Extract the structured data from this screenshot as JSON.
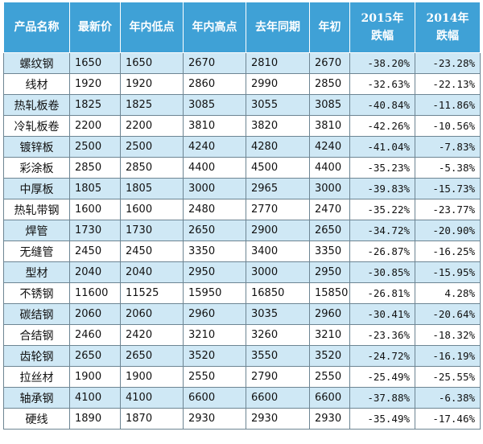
{
  "table": {
    "headers": [
      "产品名称",
      "最新价",
      "年内低点",
      "年内高点",
      "去年同期",
      "年初",
      "2015年\n跌幅",
      "2014年\n跌幅"
    ],
    "rows": [
      [
        "螺纹钢",
        "1650",
        "1650",
        "2670",
        "2810",
        "2670",
        "-38.20%",
        "-23.28%"
      ],
      [
        "线材",
        "1920",
        "1920",
        "2860",
        "2990",
        "2850",
        "-32.63%",
        "-22.13%"
      ],
      [
        "热轧板卷",
        "1825",
        "1825",
        "3085",
        "3055",
        "3085",
        "-40.84%",
        "-11.86%"
      ],
      [
        "冷轧板卷",
        "2200",
        "2200",
        "3810",
        "3820",
        "3810",
        "-42.26%",
        "-10.56%"
      ],
      [
        "镀锌板",
        "2500",
        "2500",
        "4240",
        "4280",
        "4240",
        "-41.04%",
        "-7.83%"
      ],
      [
        "彩涂板",
        "2850",
        "2850",
        "4400",
        "4500",
        "4400",
        "-35.23%",
        "-5.38%"
      ],
      [
        "中厚板",
        "1805",
        "1805",
        "3000",
        "2965",
        "3000",
        "-39.83%",
        "-15.73%"
      ],
      [
        "热轧带钢",
        "1600",
        "1600",
        "2480",
        "2770",
        "2470",
        "-35.22%",
        "-23.77%"
      ],
      [
        "焊管",
        "1730",
        "1730",
        "2650",
        "2900",
        "2650",
        "-34.72%",
        "-20.90%"
      ],
      [
        "无缝管",
        "2450",
        "2450",
        "3350",
        "3400",
        "3350",
        "-26.87%",
        "-16.25%"
      ],
      [
        "型材",
        "2040",
        "2040",
        "2950",
        "3000",
        "2950",
        "-30.85%",
        "-15.95%"
      ],
      [
        "不锈钢",
        "11600",
        "11525",
        "15950",
        "16850",
        "15850",
        "-26.81%",
        "4.28%"
      ],
      [
        "碳结钢",
        "2060",
        "2060",
        "2960",
        "3035",
        "2960",
        "-30.41%",
        "-20.64%"
      ],
      [
        "合结钢",
        "2460",
        "2420",
        "3210",
        "3260",
        "3210",
        "-23.36%",
        "-18.32%"
      ],
      [
        "齿轮钢",
        "2650",
        "2650",
        "3520",
        "3550",
        "3520",
        "-24.72%",
        "-16.19%"
      ],
      [
        "拉丝材",
        "1900",
        "1900",
        "2550",
        "2790",
        "2550",
        "-25.49%",
        "-25.55%"
      ],
      [
        "轴承钢",
        "4100",
        "4100",
        "6600",
        "6600",
        "6600",
        "-37.88%",
        "-6.38%"
      ],
      [
        "硬线",
        "1890",
        "1870",
        "2930",
        "2930",
        "2930",
        "-35.49%",
        "-17.46%"
      ]
    ]
  },
  "colors": {
    "header_bg": "#3fa1d6",
    "header_text": "#ffffff",
    "row_shade": "#cfe8f5",
    "row_plain": "#ffffff",
    "grid": "#6d8593"
  }
}
